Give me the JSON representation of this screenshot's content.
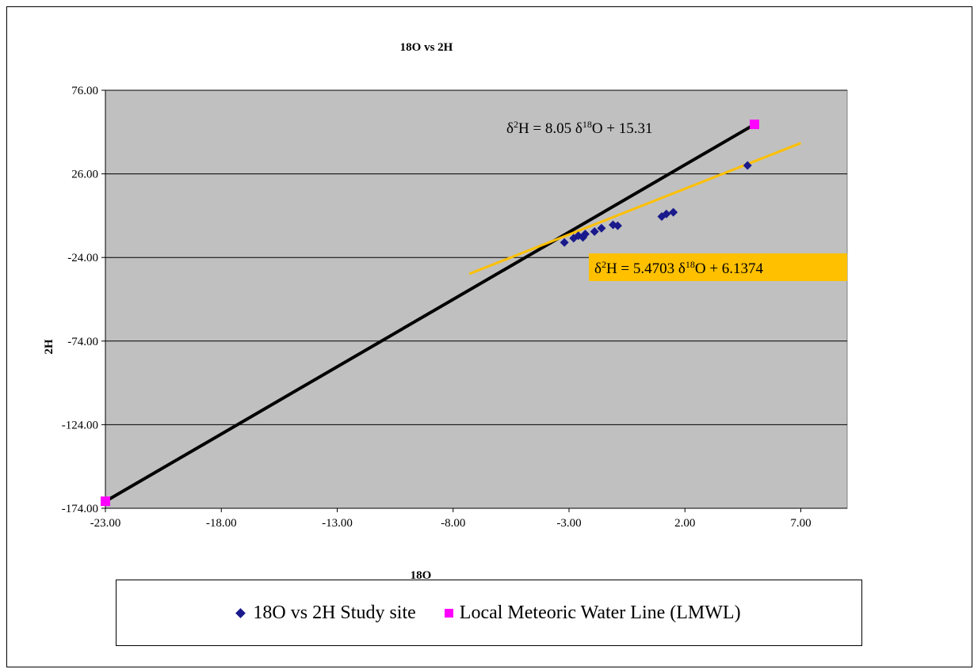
{
  "chart_data": {
    "type": "scatter",
    "title": "18O vs 2H",
    "xlabel": "18O",
    "ylabel": "2H",
    "xlim": [
      -23,
      9
    ],
    "ylim": [
      -174,
      76
    ],
    "x_ticks": [
      "-23.00",
      "-18.00",
      "-13.00",
      "-8.00",
      "-3.00",
      "2.00",
      "7.00"
    ],
    "y_ticks": [
      "76.00",
      "26.00",
      "-24.00",
      "-74.00",
      "-124.00",
      "-174.00"
    ],
    "plot_background": "#c0c0c0",
    "grid": "horizontal",
    "legend_position": "bottom",
    "series": [
      {
        "name": "18O vs 2H Study site",
        "marker": "diamond",
        "color": "#1a1a8c",
        "points": [
          {
            "x": -3.2,
            "y": -15.0
          },
          {
            "x": -2.8,
            "y": -12.5
          },
          {
            "x": -2.6,
            "y": -11.0
          },
          {
            "x": -2.4,
            "y": -12.0
          },
          {
            "x": -2.3,
            "y": -10.0
          },
          {
            "x": -1.9,
            "y": -8.5
          },
          {
            "x": -1.6,
            "y": -6.5
          },
          {
            "x": -1.1,
            "y": -4.5
          },
          {
            "x": -0.9,
            "y": -5.0
          },
          {
            "x": 1.0,
            "y": 0.5
          },
          {
            "x": 1.2,
            "y": 2.0
          },
          {
            "x": 1.5,
            "y": 3.0
          },
          {
            "x": 4.7,
            "y": 31.0
          }
        ]
      },
      {
        "name": "Local Meteoric Water Line (LMWL)",
        "marker": "square",
        "color": "#ff00ff",
        "points": [
          {
            "x": -23.0,
            "y": -169.8
          },
          {
            "x": 5.0,
            "y": 55.6
          }
        ]
      }
    ],
    "trendlines": [
      {
        "label": "δ²H = 8.05 δ¹⁸O + 15.31",
        "slope": 8.05,
        "intercept": 15.31,
        "x_range": [
          -23.0,
          5.0
        ],
        "color": "#000000"
      },
      {
        "label": "δ²H = 5.4703 δ¹⁸O  + 6.1374",
        "slope": 5.4703,
        "intercept": 6.1374,
        "x_range": [
          -7.3,
          7.0
        ],
        "color": "#ffc000"
      }
    ]
  }
}
